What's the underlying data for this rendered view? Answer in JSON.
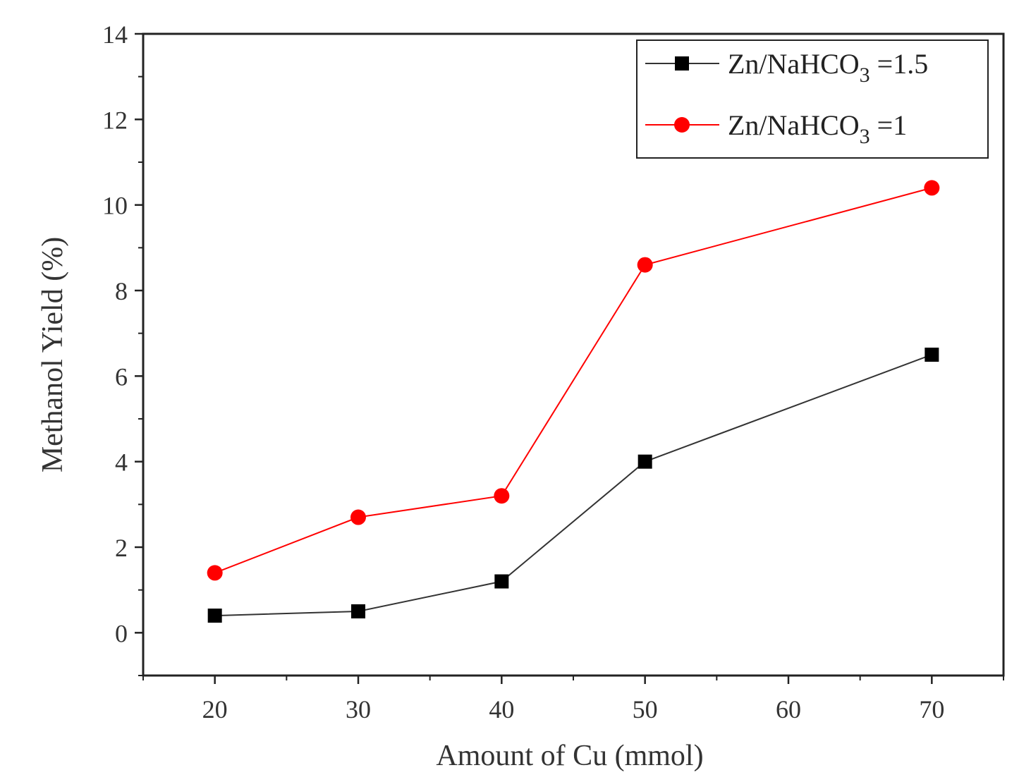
{
  "chart_data": {
    "type": "line",
    "title": "",
    "xlabel": "Amount of Cu (mmol)",
    "ylabel": "Methanol Yield (%)",
    "xlim": [
      15,
      75
    ],
    "ylim": [
      -1,
      14
    ],
    "xticks": [
      20,
      30,
      40,
      50,
      60,
      70
    ],
    "yticks": [
      0,
      2,
      4,
      6,
      8,
      10,
      12,
      14
    ],
    "x": [
      20,
      30,
      40,
      50,
      70
    ],
    "legend_position": "top-right",
    "series": [
      {
        "name": "Zn/NaHCO3 =1.5",
        "legend_main": "Zn/NaHCO",
        "legend_sub": "3",
        "legend_tail": " =1.5",
        "marker": "square",
        "color": "#000000",
        "line_color": "#333333",
        "values": [
          0.4,
          0.5,
          1.2,
          4.0,
          6.5
        ]
      },
      {
        "name": "Zn/NaHCO3 =1",
        "legend_main": "Zn/NaHCO",
        "legend_sub": "3",
        "legend_tail": " =1",
        "marker": "circle",
        "color": "#ff0000",
        "line_color": "#ff0000",
        "values": [
          1.4,
          2.7,
          3.2,
          8.6,
          10.4
        ]
      }
    ]
  }
}
